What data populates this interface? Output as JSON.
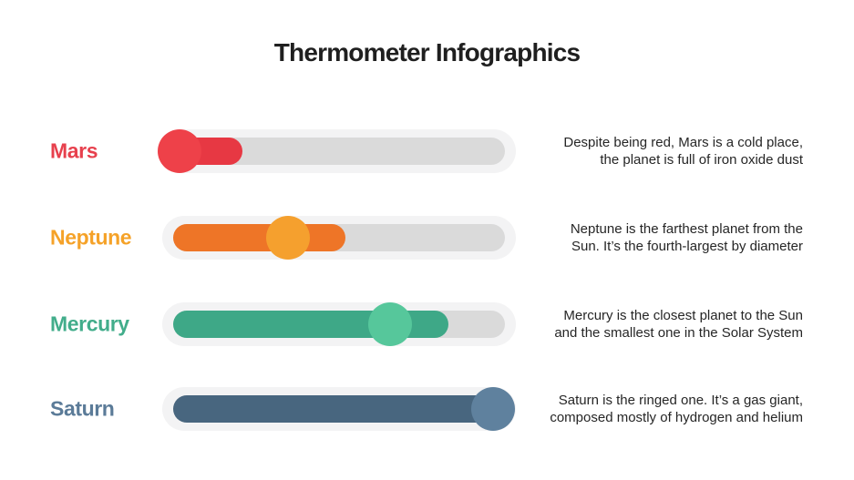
{
  "slide": {
    "title": "Thermometer Infographics",
    "background": "#ffffff",
    "title_color": "#1f1f1f",
    "container_color": "#f3f3f4",
    "track_color": "#dadada",
    "description_color": "#262626"
  },
  "rows": [
    {
      "label": "Mars",
      "label_color": "#e7404d",
      "fill_color": "#e73843",
      "bulb_color": "#ee4149",
      "fill_percent": 21,
      "bulb_percent": 2,
      "description": "Despite being red, Mars is a cold place,\nthe planet is full of iron oxide dust"
    },
    {
      "label": "Neptune",
      "label_color": "#f5a228",
      "fill_color": "#ee7527",
      "bulb_color": "#f5a02e",
      "fill_percent": 52,
      "bulb_percent": 34.6,
      "description": "Neptune is the farthest planet from the\nSun. It’s the fourth-largest by diameter"
    },
    {
      "label": "Mercury",
      "label_color": "#42ad8b",
      "fill_color": "#3ea887",
      "bulb_color": "#56c79b",
      "fill_percent": 83,
      "bulb_percent": 65.4,
      "description": "Mercury is the closest planet to the Sun\nand the smallest one in the Solar System"
    },
    {
      "label": "Saturn",
      "label_color": "#5b7b98",
      "fill_color": "#48667f",
      "bulb_color": "#5f819e",
      "fill_percent": 100,
      "bulb_percent": 96.4,
      "description": "Saturn is the ringed one. It’s a gas giant,\ncomposed mostly of hydrogen and helium"
    }
  ]
}
